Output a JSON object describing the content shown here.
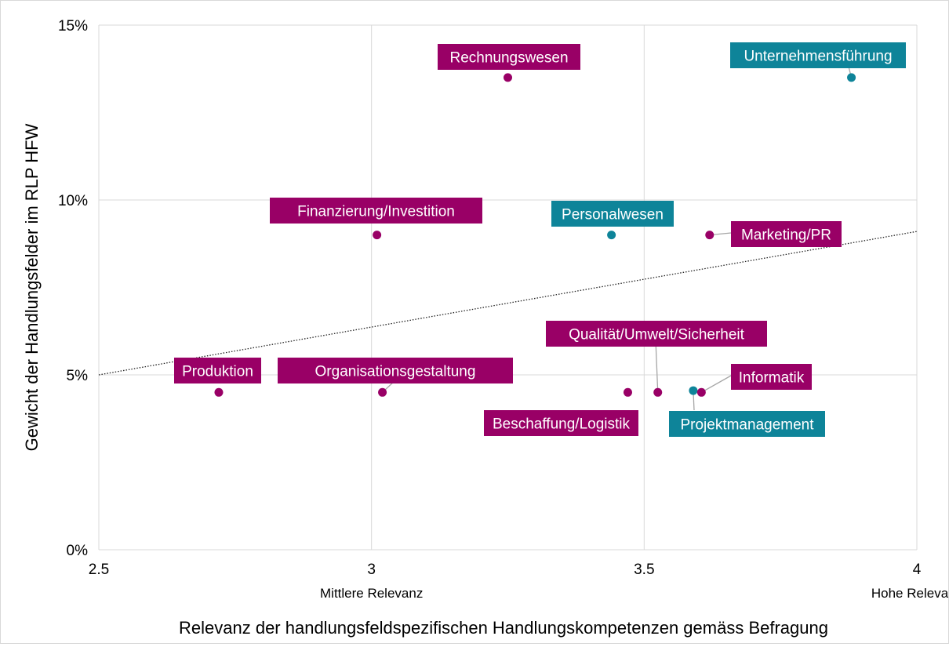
{
  "chart_data": {
    "type": "scatter",
    "xlabel": "Relevanz der handlungsfeldspezifischen Handlungskompetenzen gemäss Befragung",
    "ylabel": "Gewicht der Handlungsfelder im RLP HFW",
    "xlim": [
      2.5,
      4
    ],
    "ylim": [
      0,
      15
    ],
    "xticks": [
      {
        "value": 2.5,
        "label": "2.5"
      },
      {
        "value": 3,
        "label": "3"
      },
      {
        "value": 3.5,
        "label": "3.5"
      },
      {
        "value": 4,
        "label": "4"
      }
    ],
    "yticks": [
      {
        "value": 0,
        "label": "0%"
      },
      {
        "value": 5,
        "label": "5%"
      },
      {
        "value": 10,
        "label": "10%"
      },
      {
        "value": 15,
        "label": "15%"
      }
    ],
    "x_annotations": [
      {
        "value": 3,
        "label": "Mittlere Relevanz"
      },
      {
        "value": 4,
        "label": "Hohe Relevanz"
      }
    ],
    "grid": true,
    "colors": {
      "purple": "#990066",
      "teal": "#0e8499",
      "grid": "#d9d9d9",
      "axis_text": "#000000"
    },
    "trendline": {
      "style": "dotted",
      "start": [
        2.5,
        5.0
      ],
      "end": [
        4.0,
        9.1
      ]
    },
    "points": [
      {
        "label": "Rechnungswesen",
        "x": 3.25,
        "y": 13.5,
        "color": "purple"
      },
      {
        "label": "Unternehmensführung",
        "x": 3.88,
        "y": 13.5,
        "color": "teal"
      },
      {
        "label": "Finanzierung/Investition",
        "x": 3.01,
        "y": 9.0,
        "color": "purple"
      },
      {
        "label": "Personalwesen",
        "x": 3.44,
        "y": 9.0,
        "color": "teal"
      },
      {
        "label": "Marketing/PR",
        "x": 3.62,
        "y": 9.0,
        "color": "purple"
      },
      {
        "label": "Produktion",
        "x": 2.72,
        "y": 4.5,
        "color": "purple"
      },
      {
        "label": "Organisationsgestaltung",
        "x": 3.02,
        "y": 4.5,
        "color": "purple"
      },
      {
        "label": "Beschaffung/Logistik",
        "x": 3.47,
        "y": 4.5,
        "color": "purple"
      },
      {
        "label": "Qualität/Umwelt/Sicherheit",
        "x": 3.525,
        "y": 4.5,
        "color": "purple"
      },
      {
        "label": "Projektmanagement",
        "x": 3.59,
        "y": 4.55,
        "color": "teal"
      },
      {
        "label": "Informatik",
        "x": 3.605,
        "y": 4.5,
        "color": "purple"
      }
    ]
  }
}
